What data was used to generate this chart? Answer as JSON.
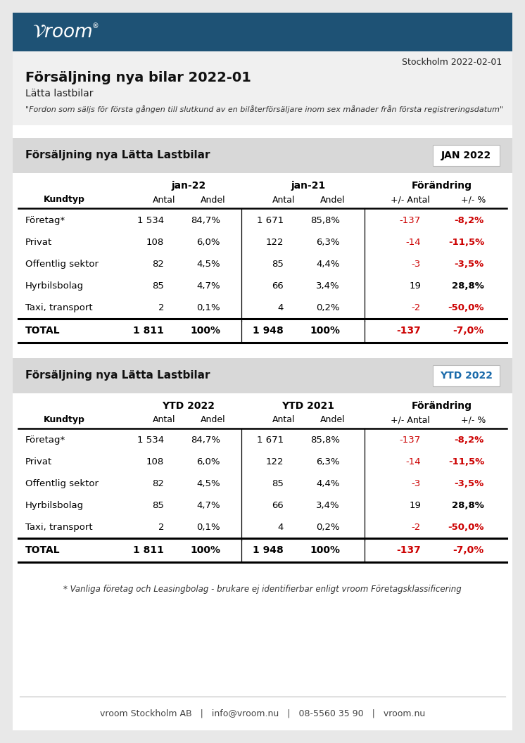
{
  "outer_bg": "#e8e8e8",
  "content_bg": "#ffffff",
  "header_bg": "#1e5275",
  "info_bg": "#f0f0f0",
  "section_bg": "#d8d8d8",
  "red_color": "#cc0000",
  "black_color": "#000000",
  "title": "Försäljning nya bilar 2022-01",
  "subtitle": "Lätta lastbilar",
  "quote": "\"Fordon som säljs för första gången till slutkund av en bilåterförsäljare inom sex månader från första registreringsdatum\"",
  "date_text": "Stockholm 2022-02-01",
  "section1_label": "Försäljning nya Lätta Lastbilar",
  "section1_badge": "JAN 2022",
  "section1_badge_color": "#000000",
  "section2_label": "Försäljning nya Lätta Lastbilar",
  "section2_badge": "YTD 2022",
  "section2_badge_color": "#1a6aaa",
  "col1_header": "Kundtyp",
  "table1_period1": "jan-22",
  "table1_period2": "jan-21",
  "table2_period1": "YTD 2022",
  "table2_period2": "YTD 2021",
  "subheader_antal": "Antal",
  "subheader_andel": "Andel",
  "subheader_forandring": "Förändring",
  "subheader_antal2": "+/- Antal",
  "subheader_pct": "+/- %",
  "rows": [
    {
      "kundtyp": "Företag*",
      "a22": "1 534",
      "p22": "84,7%",
      "a21": "1 671",
      "p21": "85,8%",
      "da": "-137",
      "dp": "-8,2%",
      "da_red": true,
      "dp_red": true
    },
    {
      "kundtyp": "Privat",
      "a22": "108",
      "p22": "6,0%",
      "a21": "122",
      "p21": "6,3%",
      "da": "-14",
      "dp": "-11,5%",
      "da_red": true,
      "dp_red": true
    },
    {
      "kundtyp": "Offentlig sektor",
      "a22": "82",
      "p22": "4,5%",
      "a21": "85",
      "p21": "4,4%",
      "da": "-3",
      "dp": "-3,5%",
      "da_red": true,
      "dp_red": true
    },
    {
      "kundtyp": "Hyrbilsbolag",
      "a22": "85",
      "p22": "4,7%",
      "a21": "66",
      "p21": "3,4%",
      "da": "19",
      "dp": "28,8%",
      "da_red": false,
      "dp_red": false
    },
    {
      "kundtyp": "Taxi, transport",
      "a22": "2",
      "p22": "0,1%",
      "a21": "4",
      "p21": "0,2%",
      "da": "-2",
      "dp": "-50,0%",
      "da_red": true,
      "dp_red": true
    }
  ],
  "total_row": {
    "kundtyp": "TOTAL",
    "a22": "1 811",
    "p22": "100%",
    "a21": "1 948",
    "p21": "100%",
    "da": "-137",
    "dp": "-7,0%",
    "da_red": true,
    "dp_red": true
  },
  "footer_note_prefix": "* ",
  "footer_note_italic1": "Vanliga företag",
  "footer_note_mid1": " och ",
  "footer_note_italic2": "Leasingbolag",
  "footer_note_mid2": " - brukare ej ",
  "footer_note_italic3": "identifierbar",
  "footer_note_end": " enligt vroom Företagsklassificering",
  "footer_text": "vroom Stockholm AB   |   info@vroom.nu   |   08-5560 35 90   |   vroom.nu"
}
